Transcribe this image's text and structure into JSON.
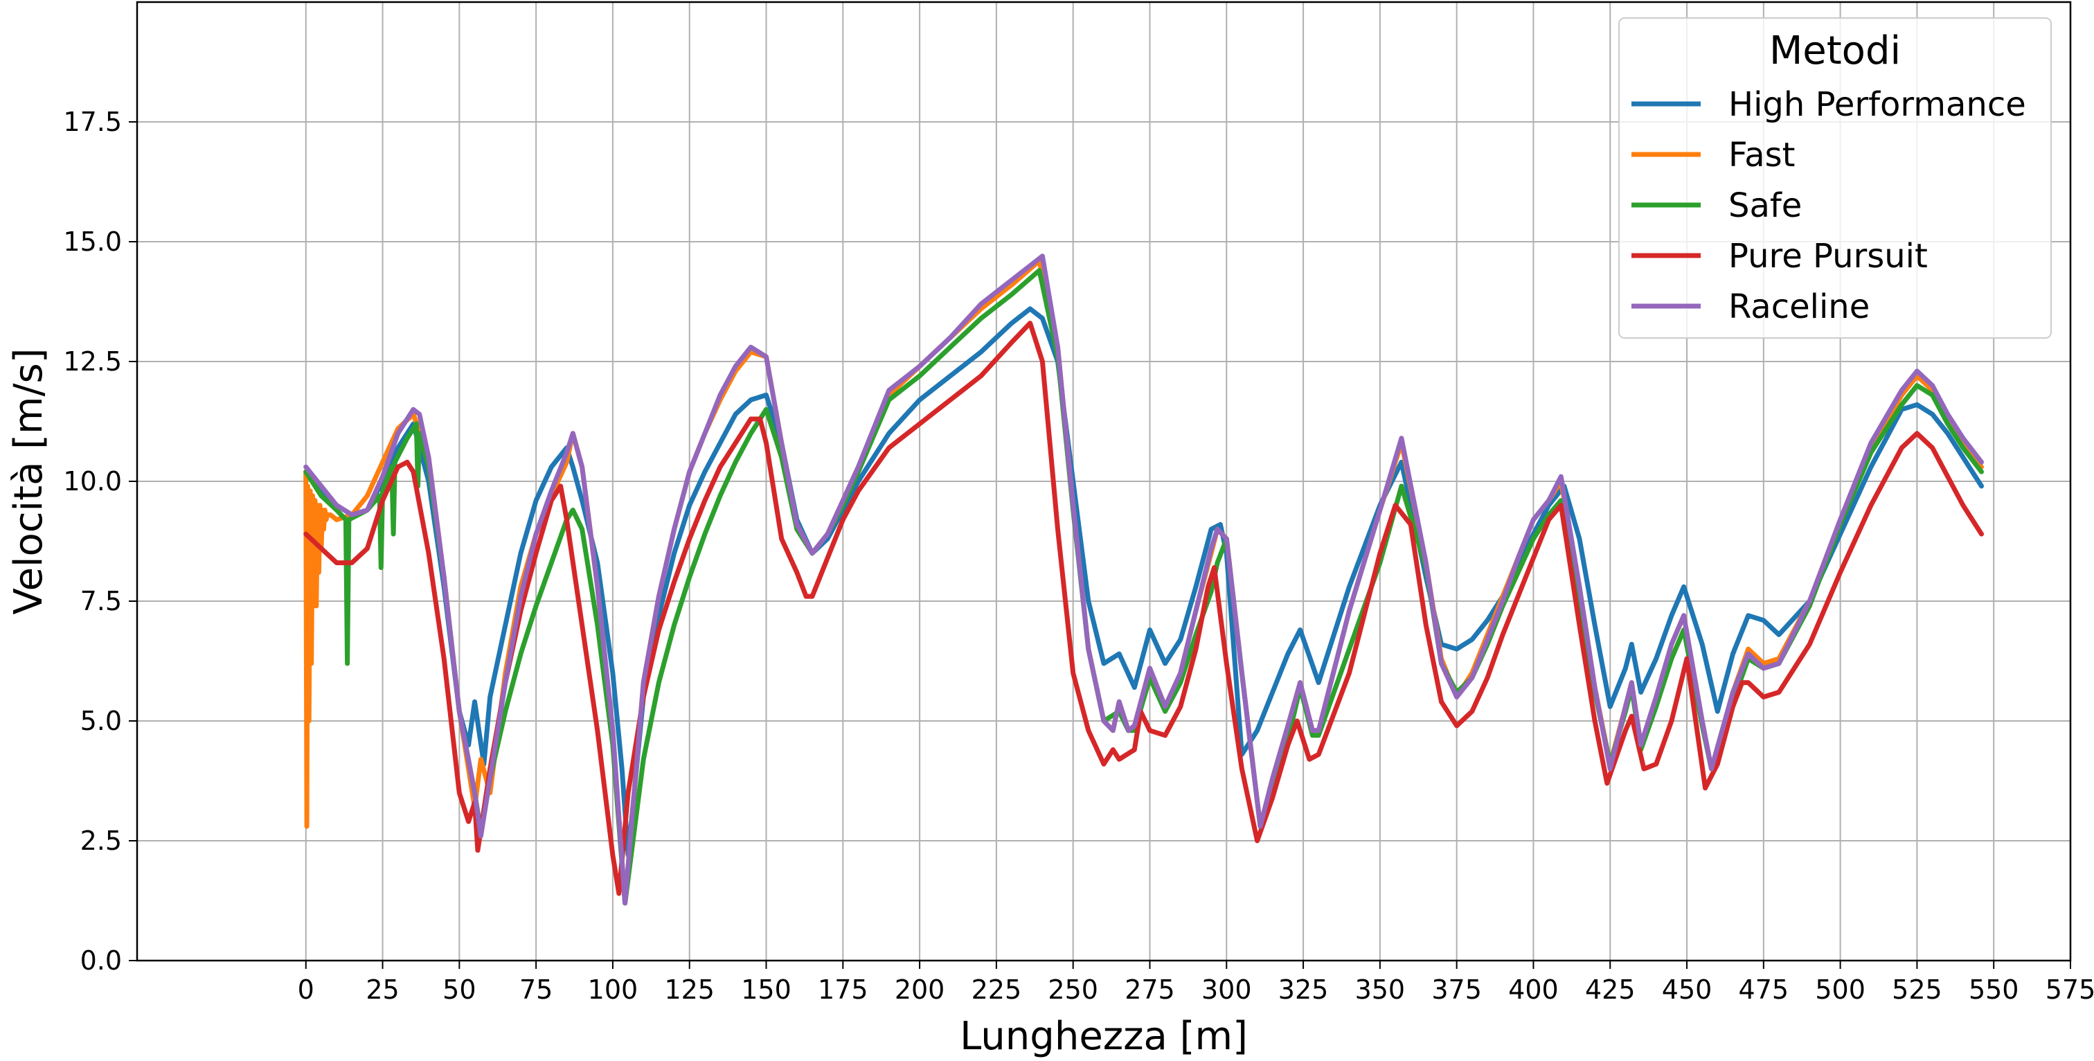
{
  "chart_data": {
    "type": "line",
    "xlabel": "Lunghezza [m]",
    "ylabel": "Velocità [m/s]",
    "xlim": [
      -55,
      575
    ],
    "ylim": [
      0,
      20
    ],
    "x_ticks": [
      0,
      25,
      50,
      75,
      100,
      125,
      150,
      175,
      200,
      225,
      250,
      275,
      300,
      325,
      350,
      375,
      400,
      425,
      450,
      475,
      500,
      525,
      550,
      575
    ],
    "y_ticks": [
      0.0,
      2.5,
      5.0,
      7.5,
      10.0,
      12.5,
      15.0,
      17.5
    ],
    "x_tick_labels": [
      "0",
      "25",
      "50",
      "75",
      "100",
      "125",
      "150",
      "175",
      "200",
      "225",
      "250",
      "275",
      "300",
      "325",
      "350",
      "375",
      "400",
      "425",
      "450",
      "475",
      "500",
      "525",
      "550",
      "575"
    ],
    "y_tick_labels": [
      "0.0",
      "2.5",
      "5.0",
      "7.5",
      "10.0",
      "12.5",
      "15.0",
      "17.5"
    ],
    "grid": true,
    "legend": {
      "title": "Metodi",
      "placement": "top-right"
    },
    "series": [
      {
        "name": "High Performance",
        "color": "#1f77b4",
        "x": [
          0,
          5,
          10,
          15,
          20,
          25,
          30,
          35,
          40,
          45,
          50,
          53,
          55,
          58,
          60,
          65,
          70,
          75,
          80,
          85,
          87,
          90,
          95,
          100,
          103,
          105,
          110,
          115,
          120,
          125,
          130,
          135,
          140,
          145,
          150,
          155,
          160,
          165,
          170,
          175,
          180,
          190,
          200,
          210,
          220,
          230,
          236,
          240,
          245,
          250,
          255,
          260,
          265,
          270,
          275,
          280,
          285,
          290,
          295,
          298,
          300,
          305,
          310,
          315,
          320,
          324,
          330,
          340,
          350,
          357,
          365,
          370,
          375,
          380,
          385,
          390,
          395,
          400,
          405,
          410,
          415,
          420,
          425,
          430,
          432,
          435,
          440,
          445,
          449,
          455,
          460,
          465,
          470,
          475,
          480,
          490,
          500,
          510,
          520,
          525,
          530,
          535,
          540,
          546
        ],
        "y": [
          10.2,
          9.8,
          9.5,
          9.3,
          9.4,
          10.0,
          10.7,
          11.2,
          10.0,
          7.8,
          5.2,
          4.5,
          5.4,
          4.1,
          5.5,
          7.0,
          8.5,
          9.6,
          10.3,
          10.7,
          10.3,
          9.6,
          8.3,
          6.0,
          4.0,
          2.2,
          5.5,
          7.2,
          8.5,
          9.5,
          10.2,
          10.8,
          11.4,
          11.7,
          11.8,
          10.8,
          9.2,
          8.5,
          8.8,
          9.4,
          10.0,
          11.0,
          11.7,
          12.2,
          12.7,
          13.3,
          13.6,
          13.4,
          12.5,
          10.0,
          7.5,
          6.2,
          6.4,
          5.7,
          6.9,
          6.2,
          6.7,
          7.8,
          9.0,
          9.1,
          8.5,
          4.3,
          4.8,
          5.6,
          6.4,
          6.9,
          5.8,
          7.8,
          9.5,
          10.4,
          8.0,
          6.6,
          6.5,
          6.7,
          7.1,
          7.6,
          8.3,
          8.9,
          9.5,
          9.9,
          8.8,
          7.0,
          5.3,
          6.1,
          6.6,
          5.6,
          6.3,
          7.2,
          7.8,
          6.6,
          5.2,
          6.4,
          7.2,
          7.1,
          6.8,
          7.5,
          8.9,
          10.3,
          11.5,
          11.6,
          11.4,
          11.0,
          10.5,
          9.9
        ]
      },
      {
        "name": "Fast",
        "color": "#ff7f0e",
        "x": [
          0,
          0.3,
          0.6,
          1,
          1.4,
          1.8,
          2.2,
          2.6,
          3,
          3.4,
          3.8,
          4.2,
          4.6,
          5,
          5.4,
          5.8,
          6.2,
          6.6,
          7,
          8,
          10,
          15,
          20,
          25,
          30,
          35,
          40,
          45,
          50,
          55,
          57,
          60,
          65,
          70,
          75,
          80,
          85,
          87,
          90,
          95,
          100,
          104,
          110,
          115,
          120,
          125,
          130,
          135,
          140,
          145,
          150,
          155,
          160,
          165,
          170,
          175,
          180,
          190,
          200,
          210,
          220,
          230,
          239,
          245,
          250,
          255,
          260,
          263,
          265,
          268,
          270,
          275,
          280,
          285,
          290,
          295,
          297,
          300,
          305,
          311,
          315,
          320,
          324,
          328,
          330,
          340,
          350,
          357,
          365,
          370,
          375,
          380,
          385,
          390,
          395,
          400,
          405,
          409,
          415,
          420,
          425,
          430,
          432,
          435,
          440,
          445,
          449,
          455,
          458,
          465,
          470,
          475,
          480,
          490,
          500,
          510,
          520,
          525,
          530,
          535,
          540,
          546
        ],
        "y": [
          10.2,
          2.8,
          9.9,
          5.0,
          9.8,
          6.2,
          9.7,
          7.4,
          9.6,
          7.4,
          9.5,
          8.1,
          9.5,
          8.6,
          9.4,
          9.0,
          9.4,
          9.2,
          9.3,
          9.3,
          9.2,
          9.3,
          9.7,
          10.4,
          11.1,
          11.4,
          10.5,
          8.0,
          5.2,
          3.2,
          4.2,
          3.5,
          6.0,
          7.8,
          8.9,
          9.7,
          10.4,
          11.0,
          10.3,
          7.8,
          4.8,
          1.2,
          5.8,
          7.6,
          9.0,
          10.2,
          11.0,
          11.7,
          12.3,
          12.7,
          12.6,
          10.8,
          9.1,
          8.5,
          8.9,
          9.6,
          10.3,
          11.8,
          12.4,
          13.0,
          13.6,
          14.1,
          14.6,
          12.8,
          9.5,
          6.5,
          5.0,
          4.8,
          5.4,
          4.8,
          4.9,
          6.1,
          5.3,
          6.0,
          7.3,
          8.5,
          9.0,
          8.8,
          6.0,
          2.8,
          3.8,
          4.9,
          5.8,
          4.8,
          4.8,
          7.3,
          9.4,
          10.8,
          8.3,
          6.3,
          5.5,
          6.0,
          6.8,
          7.6,
          8.4,
          9.2,
          9.6,
          10.0,
          7.8,
          5.7,
          4.1,
          5.3,
          5.8,
          4.5,
          5.5,
          6.6,
          7.2,
          5.0,
          4.0,
          5.6,
          6.5,
          6.2,
          6.3,
          7.5,
          9.2,
          10.7,
          11.8,
          12.2,
          11.9,
          11.3,
          10.8,
          10.3
        ]
      },
      {
        "name": "Safe",
        "color": "#2ca02c",
        "x": [
          0,
          5,
          10,
          13,
          13.5,
          14,
          20,
          24,
          24.5,
          25,
          28,
          28.5,
          29,
          33,
          35,
          36,
          36.5,
          37,
          40,
          45,
          50,
          55,
          57,
          60,
          65,
          70,
          75,
          80,
          85,
          87,
          90,
          95,
          100,
          104,
          110,
          115,
          120,
          125,
          130,
          135,
          140,
          145,
          150,
          155,
          160,
          165,
          170,
          175,
          180,
          190,
          200,
          210,
          220,
          230,
          239,
          245,
          250,
          255,
          260,
          265,
          268,
          270,
          275,
          280,
          285,
          290,
          295,
          297,
          300,
          305,
          311,
          315,
          320,
          324,
          328,
          330,
          340,
          350,
          357,
          365,
          370,
          375,
          380,
          385,
          390,
          395,
          400,
          405,
          409,
          415,
          420,
          425,
          430,
          432,
          435,
          440,
          445,
          449,
          455,
          458,
          465,
          470,
          475,
          480,
          490,
          500,
          510,
          520,
          525,
          530,
          535,
          540,
          546
        ],
        "y": [
          10.2,
          9.7,
          9.4,
          9.2,
          6.2,
          9.2,
          9.4,
          9.7,
          8.2,
          9.8,
          10.3,
          8.9,
          10.4,
          10.9,
          11.1,
          11.2,
          9.9,
          11.0,
          10.3,
          8.0,
          5.2,
          3.5,
          2.7,
          3.8,
          5.2,
          6.4,
          7.4,
          8.3,
          9.2,
          9.4,
          9.0,
          7.0,
          4.5,
          1.2,
          4.2,
          5.8,
          7.0,
          8.0,
          8.9,
          9.7,
          10.4,
          11.0,
          11.5,
          10.5,
          9.0,
          8.5,
          8.9,
          9.5,
          10.2,
          11.7,
          12.2,
          12.8,
          13.4,
          13.9,
          14.4,
          12.6,
          9.4,
          6.5,
          5.0,
          5.2,
          4.8,
          4.8,
          5.9,
          5.2,
          5.8,
          6.8,
          7.7,
          8.3,
          8.8,
          6.0,
          2.8,
          3.5,
          4.6,
          5.7,
          4.7,
          4.7,
          6.5,
          8.3,
          9.9,
          8.2,
          6.2,
          5.6,
          5.9,
          6.6,
          7.4,
          8.1,
          8.8,
          9.3,
          9.6,
          7.6,
          5.6,
          4.1,
          5.2,
          5.7,
          4.4,
          5.3,
          6.3,
          6.9,
          4.9,
          4.0,
          5.4,
          6.3,
          6.1,
          6.2,
          7.4,
          9.1,
          10.6,
          11.6,
          12.0,
          11.8,
          11.2,
          10.7,
          10.2
        ]
      },
      {
        "name": "Pure Pursuit",
        "color": "#d62728",
        "x": [
          0,
          5,
          10,
          15,
          20,
          25,
          30,
          33,
          35,
          40,
          45,
          50,
          53,
          55,
          56,
          60,
          65,
          70,
          75,
          80,
          83,
          85,
          90,
          95,
          100,
          102,
          105,
          110,
          115,
          120,
          125,
          130,
          135,
          140,
          145,
          148,
          150,
          155,
          160,
          163,
          165,
          170,
          175,
          180,
          190,
          200,
          210,
          220,
          230,
          236,
          240,
          245,
          250,
          255,
          260,
          263,
          265,
          270,
          272,
          275,
          280,
          285,
          290,
          294,
          296,
          300,
          305,
          310,
          315,
          320,
          323,
          327,
          330,
          340,
          350,
          355,
          360,
          365,
          370,
          375,
          380,
          385,
          390,
          395,
          400,
          405,
          409,
          415,
          420,
          424,
          430,
          432,
          436,
          440,
          445,
          450,
          456,
          460,
          465,
          468,
          470,
          475,
          480,
          490,
          500,
          510,
          520,
          525,
          530,
          535,
          540,
          546
        ],
        "y": [
          8.9,
          8.6,
          8.3,
          8.3,
          8.6,
          9.6,
          10.3,
          10.4,
          10.2,
          8.5,
          6.3,
          3.5,
          2.9,
          3.3,
          2.3,
          4.0,
          5.8,
          7.3,
          8.5,
          9.6,
          9.9,
          9.2,
          7.0,
          4.8,
          2.2,
          1.4,
          3.5,
          5.5,
          6.9,
          7.9,
          8.8,
          9.6,
          10.3,
          10.8,
          11.3,
          11.3,
          10.8,
          8.8,
          8.1,
          7.6,
          7.6,
          8.4,
          9.2,
          9.8,
          10.7,
          11.2,
          11.7,
          12.2,
          12.9,
          13.3,
          12.5,
          9.0,
          6.0,
          4.8,
          4.1,
          4.4,
          4.2,
          4.4,
          5.2,
          4.8,
          4.7,
          5.3,
          6.5,
          7.8,
          8.2,
          6.2,
          4.0,
          2.5,
          3.4,
          4.5,
          5.0,
          4.2,
          4.3,
          6.0,
          8.5,
          9.5,
          9.1,
          7.0,
          5.4,
          4.9,
          5.2,
          5.9,
          6.8,
          7.6,
          8.4,
          9.2,
          9.5,
          7.0,
          5.0,
          3.7,
          4.8,
          5.1,
          4.0,
          4.1,
          5.0,
          6.3,
          3.6,
          4.1,
          5.3,
          5.8,
          5.8,
          5.5,
          5.6,
          6.6,
          8.1,
          9.5,
          10.7,
          11.0,
          10.7,
          10.1,
          9.5,
          8.9
        ]
      },
      {
        "name": "Raceline",
        "color": "#9467bd",
        "x": [
          0,
          5,
          10,
          15,
          20,
          25,
          30,
          35,
          37,
          40,
          45,
          50,
          55,
          57,
          60,
          65,
          70,
          75,
          80,
          85,
          87,
          90,
          95,
          100,
          104,
          110,
          115,
          120,
          125,
          130,
          135,
          140,
          145,
          150,
          155,
          160,
          165,
          170,
          175,
          180,
          190,
          200,
          210,
          220,
          230,
          240,
          245,
          250,
          255,
          260,
          263,
          265,
          268,
          270,
          275,
          280,
          285,
          290,
          295,
          297,
          300,
          305,
          311,
          315,
          320,
          324,
          328,
          330,
          340,
          350,
          357,
          365,
          370,
          375,
          380,
          385,
          390,
          395,
          400,
          405,
          409,
          415,
          420,
          425,
          430,
          432,
          435,
          440,
          445,
          449,
          455,
          458,
          465,
          470,
          475,
          480,
          490,
          500,
          510,
          520,
          525,
          530,
          535,
          540,
          546
        ],
        "y": [
          10.3,
          9.9,
          9.5,
          9.3,
          9.4,
          10.1,
          11.0,
          11.5,
          11.4,
          10.5,
          8.0,
          5.2,
          3.5,
          2.6,
          3.8,
          5.8,
          7.6,
          8.9,
          9.8,
          10.6,
          11.0,
          10.3,
          7.8,
          4.8,
          1.2,
          5.8,
          7.6,
          9.0,
          10.2,
          11.0,
          11.8,
          12.4,
          12.8,
          12.6,
          10.8,
          9.1,
          8.5,
          8.9,
          9.6,
          10.3,
          11.9,
          12.4,
          13.0,
          13.7,
          14.2,
          14.7,
          12.8,
          9.5,
          6.5,
          5.0,
          4.8,
          5.4,
          4.8,
          4.9,
          6.1,
          5.3,
          6.0,
          7.3,
          8.6,
          9.0,
          8.8,
          6.0,
          2.8,
          3.8,
          4.9,
          5.8,
          4.8,
          4.8,
          7.3,
          9.4,
          10.9,
          8.3,
          6.2,
          5.5,
          5.9,
          6.7,
          7.5,
          8.4,
          9.2,
          9.6,
          10.1,
          7.8,
          5.7,
          4.0,
          5.3,
          5.8,
          4.5,
          5.5,
          6.6,
          7.2,
          5.0,
          4.0,
          5.6,
          6.4,
          6.1,
          6.2,
          7.5,
          9.2,
          10.8,
          11.9,
          12.3,
          12.0,
          11.4,
          10.9,
          10.4
        ]
      }
    ]
  }
}
